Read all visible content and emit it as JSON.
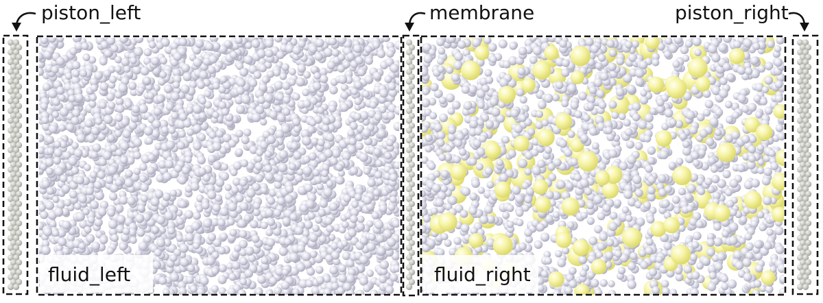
{
  "labels": {
    "piston_left": "piston_left",
    "membrane": "membrane",
    "piston_right": "piston_right",
    "fluid_left": "fluid_left",
    "fluid_right": "fluid_right"
  },
  "colors": {
    "background": "#ffffff",
    "dashed_outline": "#111111",
    "solvent_particle": "#c8c8d8",
    "solute_particle": "#f4f296",
    "wall_particle": "#c4c6c0"
  }
}
